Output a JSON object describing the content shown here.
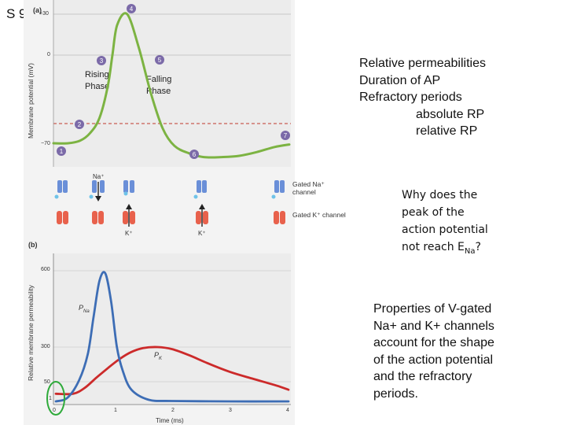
{
  "slide": {
    "label": "S 9"
  },
  "panel_a": {
    "letter": "(a)",
    "ylabel": "Membrane potential (mV)",
    "yticks": [
      "+30",
      "0",
      "−70"
    ],
    "rising_label": "Rising Phase",
    "falling_label": "Falling Phase",
    "markers": [
      "1",
      "2",
      "3",
      "4",
      "5",
      "6",
      "7"
    ],
    "curve_color": "#7cb342",
    "threshold_color": "#c0392b",
    "channels": {
      "na_label": "Gated Na⁺ channel",
      "k_label": "Gated K⁺ channel",
      "na_ion": "Na⁺",
      "k_ion_1": "K⁺",
      "k_ion_2": "K⁺",
      "na_color": "#6a8fd8",
      "k_color": "#e8614c"
    }
  },
  "panel_b": {
    "letter": "(b)",
    "ylabel": "Relative membrane permeability",
    "xlabel": "Time (ms)",
    "yticks": [
      "600",
      "300",
      "50",
      "1"
    ],
    "xticks": [
      "0",
      "1",
      "2",
      "3",
      "4"
    ],
    "pna_label": "P",
    "pna_sub": "Na",
    "pk_label": "P",
    "pk_sub": "K",
    "na_color": "#3d6db5",
    "k_color": "#cc2a2a",
    "highlight_color": "#2eaa3a"
  },
  "chart_data": [
    {
      "type": "line",
      "ylabel": "Membrane potential (mV)",
      "yticks": [
        "+30",
        "0",
        "−70"
      ],
      "ylim": [
        -85,
        35
      ],
      "x": [
        0.0,
        0.25,
        0.45,
        0.62,
        0.78,
        0.92,
        1.0,
        1.08,
        1.25,
        1.45,
        1.65,
        1.85,
        2.05,
        2.3,
        2.55,
        2.85,
        3.15,
        3.45,
        3.75,
        4.0
      ],
      "series": [
        {
          "values": [
            -70,
            -70,
            -68,
            -62,
            -50,
            -25,
            0,
            22,
            30,
            5,
            -30,
            -58,
            -72,
            -78,
            -81,
            -81,
            -80,
            -77,
            -73,
            -71
          ]
        }
      ]
    },
    {
      "type": "line",
      "xlabel": "Time (ms)",
      "ylabel": "Relative membrane permeability",
      "xticks": [
        "0",
        "1",
        "2",
        "3",
        "4"
      ],
      "yticks": [
        "600",
        "300",
        "50",
        "1"
      ],
      "xlim": [
        0,
        4
      ],
      "series": [
        {
          "name": "PNa",
          "x": [
            0.0,
            0.2,
            0.4,
            0.55,
            0.65,
            0.75,
            0.85,
            0.95,
            1.05,
            1.15,
            1.3,
            1.6,
            2.0,
            3.0,
            4.0
          ],
          "values": [
            1,
            10,
            60,
            250,
            420,
            560,
            590,
            480,
            300,
            130,
            30,
            5,
            2,
            1,
            1
          ]
        },
        {
          "name": "PK",
          "x": [
            0.0,
            0.3,
            0.5,
            0.7,
            0.9,
            1.1,
            1.3,
            1.5,
            1.75,
            2.0,
            2.3,
            2.6,
            3.0,
            3.4,
            3.8,
            4.0
          ],
          "values": [
            20,
            20,
            35,
            80,
            150,
            215,
            265,
            293,
            300,
            285,
            240,
            185,
            120,
            70,
            40,
            30
          ]
        }
      ]
    }
  ],
  "right_text": {
    "block1": [
      "Relative permeabilities",
      "Duration of AP",
      "Refractory periods"
    ],
    "block1_indented": [
      "absolute  RP",
      "relative RP"
    ],
    "question_lines": [
      "Why does the",
      "peak of the",
      "action potential"
    ],
    "question_last_prefix": "not reach E",
    "question_last_sub": "Na",
    "question_last_suffix": "?",
    "conclusion_lines": [
      "Properties of V-gated",
      "Na+ and K+ channels",
      "account for the shape",
      "of the action potential",
      "and the refractory",
      "periods."
    ]
  }
}
